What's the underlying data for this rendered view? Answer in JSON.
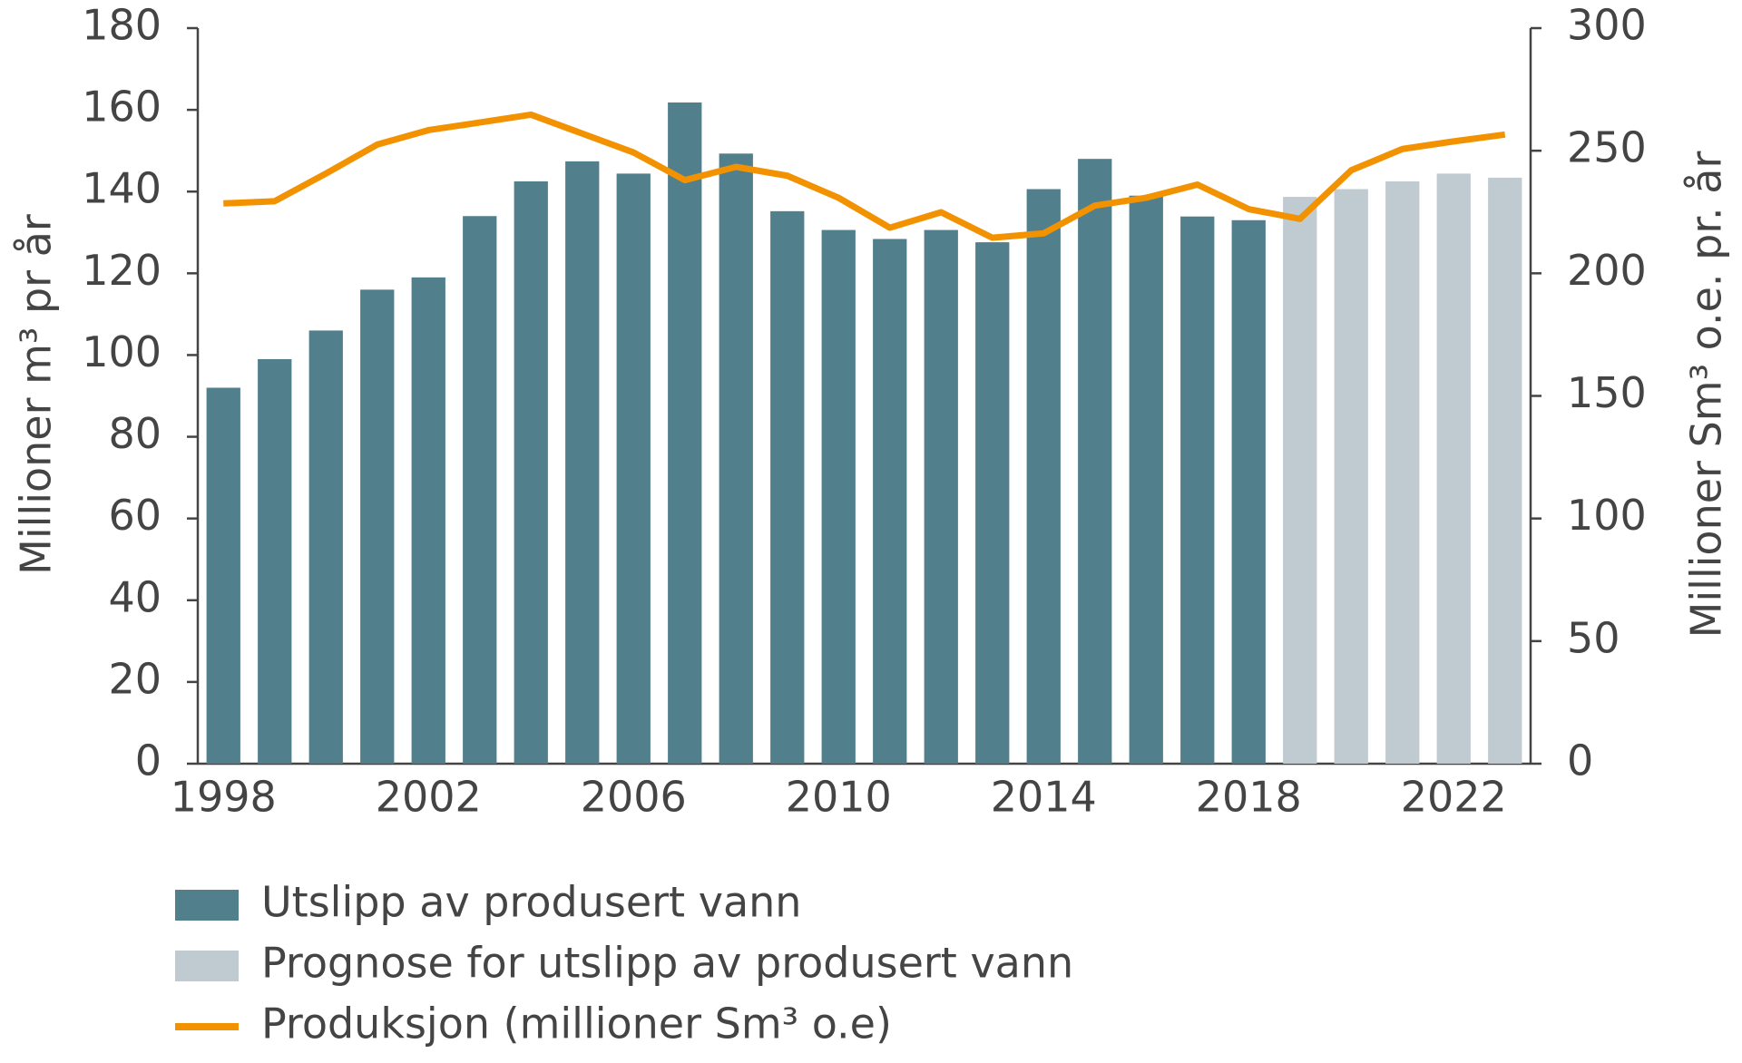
{
  "chart_data": {
    "type": "bar",
    "categories": [
      "1998",
      null,
      null,
      null,
      "2002",
      null,
      null,
      null,
      "2006",
      null,
      null,
      null,
      "2010",
      null,
      null,
      null,
      "2014",
      null,
      null,
      null,
      "2018",
      null,
      null,
      null,
      "2022",
      null
    ],
    "series": [
      {
        "name": "Utslipp av produsert vann",
        "color": "#527f8c",
        "type": "bar",
        "values": [
          92,
          99,
          106,
          116,
          119,
          134,
          142.5,
          147.4,
          144.4,
          161.8,
          149.3,
          135.2,
          130.6,
          128.4,
          130.6,
          127.6,
          140.6,
          148,
          139,
          133.9,
          133,
          null,
          null,
          null,
          null,
          null
        ]
      },
      {
        "name": "Prognose for utslipp av produsert vann",
        "color": "#bfcbd1",
        "type": "bar",
        "values": [
          null,
          null,
          null,
          null,
          null,
          null,
          null,
          null,
          null,
          null,
          null,
          null,
          null,
          null,
          null,
          null,
          null,
          null,
          null,
          null,
          null,
          138.7,
          140.6,
          142.5,
          144.4,
          143.4
        ]
      },
      {
        "name": "Produksjon (millioner Sm³ o.e)",
        "color": "#f39200",
        "type": "line",
        "axis": "y2",
        "values": [
          228.5,
          229.4,
          240.7,
          252.5,
          258.4,
          261.5,
          264.7,
          257,
          249.3,
          238,
          243.4,
          239.8,
          230.8,
          218.6,
          224.9,
          214.5,
          216.3,
          227.6,
          230.8,
          236.2,
          226.2,
          222.2,
          242,
          250.7,
          253.8,
          256.6
        ]
      }
    ],
    "y_label": "Millioner m³ pr år",
    "y2_label": "Millioner Sm³ o.e. pr. år",
    "ylim": [
      0,
      180
    ],
    "yticks": [
      0,
      20,
      40,
      60,
      80,
      100,
      120,
      140,
      160,
      180
    ],
    "y2lim": [
      0,
      300
    ],
    "y2ticks": [
      0,
      50,
      100,
      150,
      200,
      250,
      300
    ],
    "grid": false,
    "legend": "bottom"
  }
}
